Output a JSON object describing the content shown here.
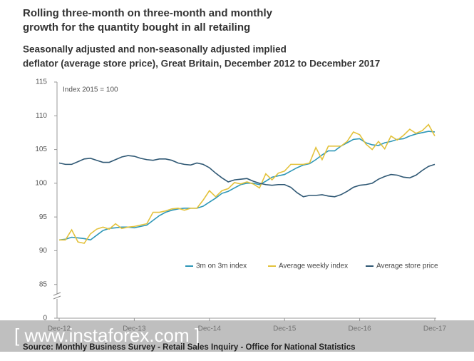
{
  "chart_data": {
    "type": "line",
    "title": [
      "Rolling three-month on three-month and monthly",
      "growth for the quantity bought in all retailing"
    ],
    "subtitle": [
      "Seasonally adjusted and non-seasonally adjusted implied",
      "deflator (average store price), Great Britain, December 2012 to December 2017"
    ],
    "y_axis_note": "Index 2015 = 100",
    "y_axis_floor_label": "0",
    "source": "Source: Monthly Business Survey - Retail Sales Inquiry - Office for  National Statistics",
    "watermark": "[ www.instaforex.com ]",
    "categories": [
      "Dec-12",
      null,
      null,
      null,
      null,
      null,
      null,
      null,
      null,
      null,
      null,
      null,
      "Dec-13",
      null,
      null,
      null,
      null,
      null,
      null,
      null,
      null,
      null,
      null,
      null,
      "Dec-14",
      null,
      null,
      null,
      null,
      null,
      null,
      null,
      null,
      null,
      null,
      null,
      "Dec-15",
      null,
      null,
      null,
      null,
      null,
      null,
      null,
      null,
      null,
      null,
      null,
      "Dec-16",
      null,
      null,
      null,
      null,
      null,
      null,
      null,
      null,
      null,
      null,
      null,
      "Dec-17"
    ],
    "ylim": [
      80,
      115
    ],
    "yticks": [
      85,
      90,
      95,
      100,
      105,
      110,
      115
    ],
    "legend": "bottom-right",
    "series": [
      {
        "name": "3m on 3m index",
        "color": "#2e97b7",
        "values": [
          91.6,
          91.7,
          92.0,
          91.9,
          91.8,
          91.6,
          92.3,
          93.0,
          93.3,
          93.4,
          93.5,
          93.5,
          93.4,
          93.6,
          93.8,
          94.5,
          95.2,
          95.7,
          96.0,
          96.2,
          96.3,
          96.3,
          96.3,
          96.6,
          97.2,
          97.8,
          98.5,
          98.8,
          99.3,
          99.8,
          100.0,
          100.0,
          99.8,
          100.3,
          100.9,
          101.1,
          101.3,
          101.8,
          102.3,
          102.7,
          102.9,
          103.5,
          104.2,
          104.8,
          104.8,
          105.5,
          106.0,
          106.5,
          106.6,
          106.0,
          105.7,
          105.6,
          106.0,
          106.2,
          106.5,
          106.6,
          107.0,
          107.3,
          107.5,
          107.7,
          107.6
        ]
      },
      {
        "name": "Average weekly index",
        "color": "#e3c23c",
        "values": [
          91.6,
          91.6,
          93.1,
          91.3,
          91.1,
          92.5,
          93.2,
          93.5,
          93.2,
          94.0,
          93.3,
          93.5,
          93.6,
          93.8,
          94.0,
          95.7,
          95.7,
          95.9,
          96.2,
          96.3,
          96.0,
          96.3,
          96.3,
          97.5,
          98.9,
          98.0,
          98.9,
          99.2,
          100.1,
          99.9,
          100.2,
          99.9,
          99.3,
          101.4,
          100.5,
          101.5,
          101.8,
          102.8,
          102.8,
          102.8,
          103.0,
          105.3,
          103.5,
          105.5,
          105.5,
          105.5,
          106.2,
          107.6,
          107.2,
          105.8,
          105.0,
          106.2,
          105.1,
          107.0,
          106.4,
          107.1,
          108.0,
          107.4,
          107.8,
          108.7,
          107.0
        ]
      },
      {
        "name": "Average store price",
        "color": "#2f5874",
        "values": [
          103.0,
          102.8,
          102.8,
          103.2,
          103.6,
          103.7,
          103.4,
          103.1,
          103.1,
          103.5,
          103.9,
          104.1,
          104.0,
          103.7,
          103.5,
          103.4,
          103.6,
          103.6,
          103.4,
          103.0,
          102.8,
          102.7,
          103.0,
          102.8,
          102.3,
          101.5,
          100.8,
          100.2,
          100.5,
          100.6,
          100.7,
          100.3,
          100.0,
          99.8,
          99.7,
          99.8,
          99.8,
          99.4,
          98.6,
          98.0,
          98.2,
          98.2,
          98.3,
          98.1,
          98.0,
          98.3,
          98.8,
          99.4,
          99.7,
          99.8,
          100.0,
          100.6,
          101.0,
          101.3,
          101.2,
          100.9,
          100.8,
          101.2,
          101.9,
          102.5,
          102.8
        ]
      }
    ]
  }
}
